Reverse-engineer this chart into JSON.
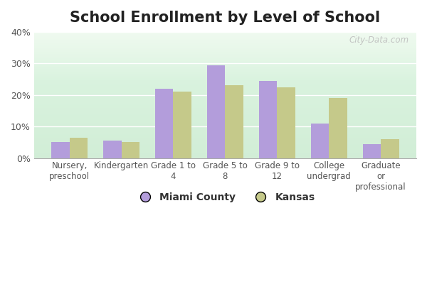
{
  "title": "School Enrollment by Level of School",
  "categories": [
    "Nursery,\npreschool",
    "Kindergarten",
    "Grade 1 to\n4",
    "Grade 5 to\n8",
    "Grade 9 to\n12",
    "College\nundergrad",
    "Graduate\nor\nprofessional"
  ],
  "miami_county": [
    5,
    5.5,
    22,
    29.5,
    24.5,
    11,
    4.5
  ],
  "kansas": [
    6.5,
    5,
    21,
    23,
    22.5,
    19,
    6
  ],
  "miami_color": "#b39ddb",
  "kansas_color": "#c5c98a",
  "ylim": [
    0,
    40
  ],
  "yticks": [
    0,
    10,
    20,
    30,
    40
  ],
  "ytick_labels": [
    "0%",
    "10%",
    "20%",
    "30%",
    "40%"
  ],
  "bar_width": 0.35,
  "legend_miami": "Miami County",
  "legend_kansas": "Kansas",
  "title_fontsize": 15,
  "watermark": "City-Data.com"
}
